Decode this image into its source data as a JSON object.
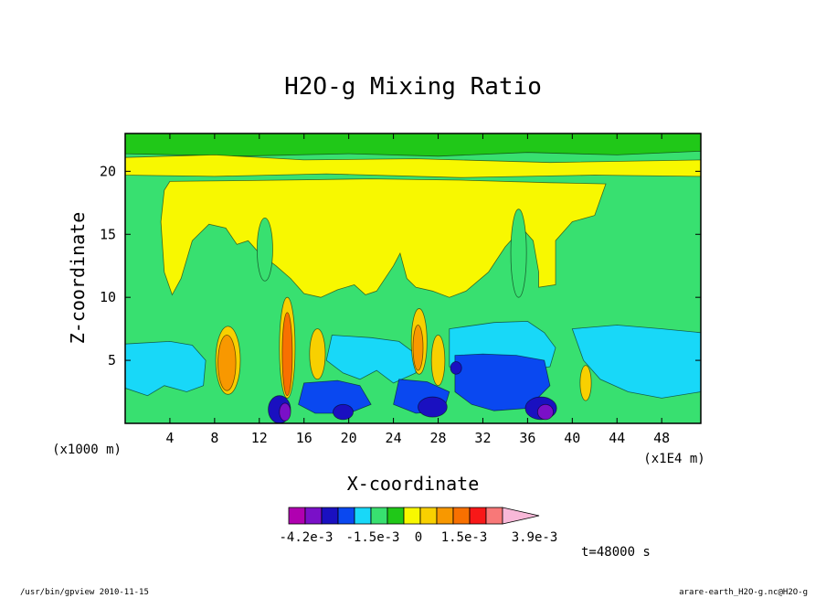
{
  "chart_data": {
    "type": "heatmap",
    "title": "H2O-g Mixing Ratio",
    "xlabel": "X-coordinate",
    "ylabel": "Z-coordinate",
    "x_scale_note": "(x1E4 m)",
    "y_scale_note": "(x1000 m)",
    "xlim": [
      0,
      51.5
    ],
    "ylim": [
      0,
      23
    ],
    "x_ticks": [
      4,
      8,
      12,
      16,
      20,
      24,
      28,
      32,
      36,
      40,
      44,
      48
    ],
    "x_tick_labels": [
      "4",
      "8",
      "12",
      "16",
      "20",
      "24",
      "28",
      "32",
      "36",
      "40",
      "44",
      "48"
    ],
    "y_ticks": [
      5,
      10,
      15,
      20
    ],
    "y_tick_labels": [
      "5",
      "10",
      "15",
      "20"
    ],
    "colorbar": {
      "colors": [
        "#b000b0",
        "#7a10c8",
        "#1a10c0",
        "#0a48f0",
        "#18d8f8",
        "#38e070",
        "#20c818",
        "#f8f800",
        "#f8d000",
        "#f89800",
        "#f87000",
        "#f81818",
        "#f87878",
        "#f8b8d8"
      ],
      "labels": [
        "-4.2e-3",
        "-1.5e-3",
        "0",
        "1.5e-3",
        "3.9e-3"
      ]
    },
    "annotation_time": "t=48000 s",
    "cells": [
      {
        "region": "upper-band",
        "x": [
          0,
          51.5
        ],
        "y": [
          20,
          23
        ],
        "level": "green"
      },
      {
        "region": "stratosphere-stripe",
        "x": [
          0,
          51.5
        ],
        "y": [
          19.5,
          20.8
        ],
        "level": "yellow"
      },
      {
        "region": "anvil",
        "x": [
          4,
          43
        ],
        "y": [
          10,
          19.5
        ],
        "level": "yellow"
      },
      {
        "region": "low-cyan-left",
        "x": [
          0,
          6
        ],
        "y": [
          2,
          7
        ],
        "level": "cyan"
      },
      {
        "region": "low-blue-right",
        "x": [
          29,
          39
        ],
        "y": [
          0,
          5
        ],
        "level": "blue"
      },
      {
        "region": "convective-cell",
        "x": [
          8,
          10
        ],
        "y": [
          2,
          8
        ],
        "level": "orange"
      },
      {
        "region": "convective-cell",
        "x": [
          14,
          15
        ],
        "y": [
          2,
          10
        ],
        "level": "orange"
      },
      {
        "region": "convective-cell",
        "x": [
          26,
          28
        ],
        "y": [
          3,
          10
        ],
        "level": "orange"
      }
    ]
  },
  "footer": {
    "left": "/usr/bin/gpview   2010-11-15",
    "right": "arare-earth_H2O-g.nc@H2O-g"
  },
  "colors": {
    "background": "#ffffff",
    "frame": "#000000"
  }
}
